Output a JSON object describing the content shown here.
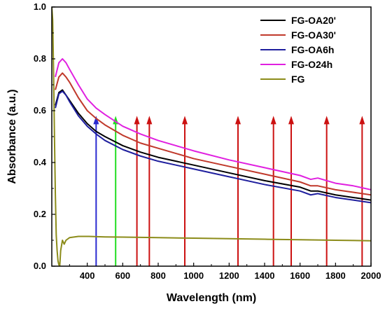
{
  "chart_data": {
    "type": "line",
    "xlabel": "Wavelength (nm)",
    "ylabel": "Absorbance (a.u.)",
    "xlim": [
      200,
      2000
    ],
    "ylim": [
      0.0,
      1.0
    ],
    "xticks": [
      400,
      600,
      800,
      1000,
      1200,
      1400,
      1600,
      1800,
      2000
    ],
    "yticks": [
      0.0,
      0.2,
      0.4,
      0.6,
      0.8,
      1.0
    ],
    "xtick_labels": [
      "400",
      "600",
      "800",
      "1000",
      "1200",
      "1400",
      "1600",
      "1800",
      "2000"
    ],
    "ytick_labels": [
      "0.0",
      "0.2",
      "0.4",
      "0.6",
      "0.8",
      "1.0"
    ],
    "grid": false,
    "legend_position": "top-right",
    "series": [
      {
        "name": "FG-OA20'",
        "color": "#000000",
        "x": [
          220,
          240,
          260,
          280,
          300,
          350,
          400,
          450,
          500,
          600,
          700,
          800,
          900,
          1000,
          1200,
          1400,
          1600,
          1660,
          1700,
          1800,
          1900,
          2000
        ],
        "y": [
          0.62,
          0.67,
          0.68,
          0.66,
          0.64,
          0.59,
          0.55,
          0.52,
          0.5,
          0.465,
          0.44,
          0.42,
          0.405,
          0.39,
          0.36,
          0.33,
          0.305,
          0.29,
          0.29,
          0.275,
          0.265,
          0.255
        ]
      },
      {
        "name": "FG-OA30'",
        "color": "#c0392b",
        "x": [
          220,
          240,
          260,
          280,
          300,
          350,
          400,
          450,
          500,
          600,
          700,
          800,
          900,
          1000,
          1200,
          1400,
          1600,
          1660,
          1700,
          1800,
          1900,
          2000
        ],
        "y": [
          0.68,
          0.73,
          0.745,
          0.73,
          0.71,
          0.65,
          0.6,
          0.57,
          0.545,
          0.505,
          0.475,
          0.455,
          0.435,
          0.415,
          0.385,
          0.355,
          0.325,
          0.31,
          0.31,
          0.295,
          0.285,
          0.275
        ]
      },
      {
        "name": "FG-OA6h",
        "color": "#1f1f9e",
        "x": [
          220,
          240,
          260,
          280,
          300,
          350,
          400,
          450,
          500,
          600,
          700,
          800,
          900,
          1000,
          1200,
          1400,
          1600,
          1660,
          1700,
          1800,
          1900,
          2000
        ],
        "y": [
          0.61,
          0.665,
          0.675,
          0.66,
          0.635,
          0.58,
          0.54,
          0.51,
          0.485,
          0.45,
          0.425,
          0.405,
          0.39,
          0.375,
          0.345,
          0.315,
          0.29,
          0.275,
          0.28,
          0.265,
          0.255,
          0.245
        ]
      },
      {
        "name": "FG-O24h",
        "color": "#e020e0",
        "x": [
          220,
          240,
          260,
          280,
          300,
          350,
          400,
          450,
          500,
          600,
          700,
          800,
          900,
          1000,
          1200,
          1400,
          1600,
          1660,
          1700,
          1800,
          1900,
          2000
        ],
        "y": [
          0.73,
          0.785,
          0.8,
          0.785,
          0.76,
          0.7,
          0.645,
          0.61,
          0.585,
          0.54,
          0.51,
          0.485,
          0.465,
          0.445,
          0.41,
          0.38,
          0.35,
          0.335,
          0.34,
          0.32,
          0.31,
          0.295
        ]
      },
      {
        "name": "FG",
        "color": "#8c8c1a",
        "x": [
          200,
          205,
          210,
          215,
          220,
          225,
          230,
          235,
          240,
          245,
          250,
          260,
          270,
          280,
          300,
          350,
          400,
          500,
          600,
          800,
          1000,
          1200,
          1400,
          1600,
          1800,
          2000
        ],
        "y": [
          1.0,
          0.95,
          0.75,
          0.5,
          0.28,
          0.12,
          0.06,
          0.02,
          0.005,
          0.003,
          0.06,
          0.1,
          0.085,
          0.1,
          0.11,
          0.115,
          0.115,
          0.113,
          0.112,
          0.11,
          0.108,
          0.106,
          0.104,
          0.102,
          0.1,
          0.098
        ]
      }
    ],
    "annotations": {
      "arrows": [
        {
          "x": 450,
          "color": "#2a2ad0",
          "y_top": 0.58
        },
        {
          "x": 560,
          "color": "#22dd22",
          "y_top": 0.58
        },
        {
          "x": 680,
          "color": "#cc1111",
          "y_top": 0.58
        },
        {
          "x": 750,
          "color": "#cc1111",
          "y_top": 0.58
        },
        {
          "x": 950,
          "color": "#cc1111",
          "y_top": 0.58
        },
        {
          "x": 1250,
          "color": "#cc1111",
          "y_top": 0.58
        },
        {
          "x": 1450,
          "color": "#cc1111",
          "y_top": 0.58
        },
        {
          "x": 1550,
          "color": "#cc1111",
          "y_top": 0.58
        },
        {
          "x": 1750,
          "color": "#cc1111",
          "y_top": 0.58
        },
        {
          "x": 1950,
          "color": "#cc1111",
          "y_top": 0.58
        }
      ]
    }
  }
}
